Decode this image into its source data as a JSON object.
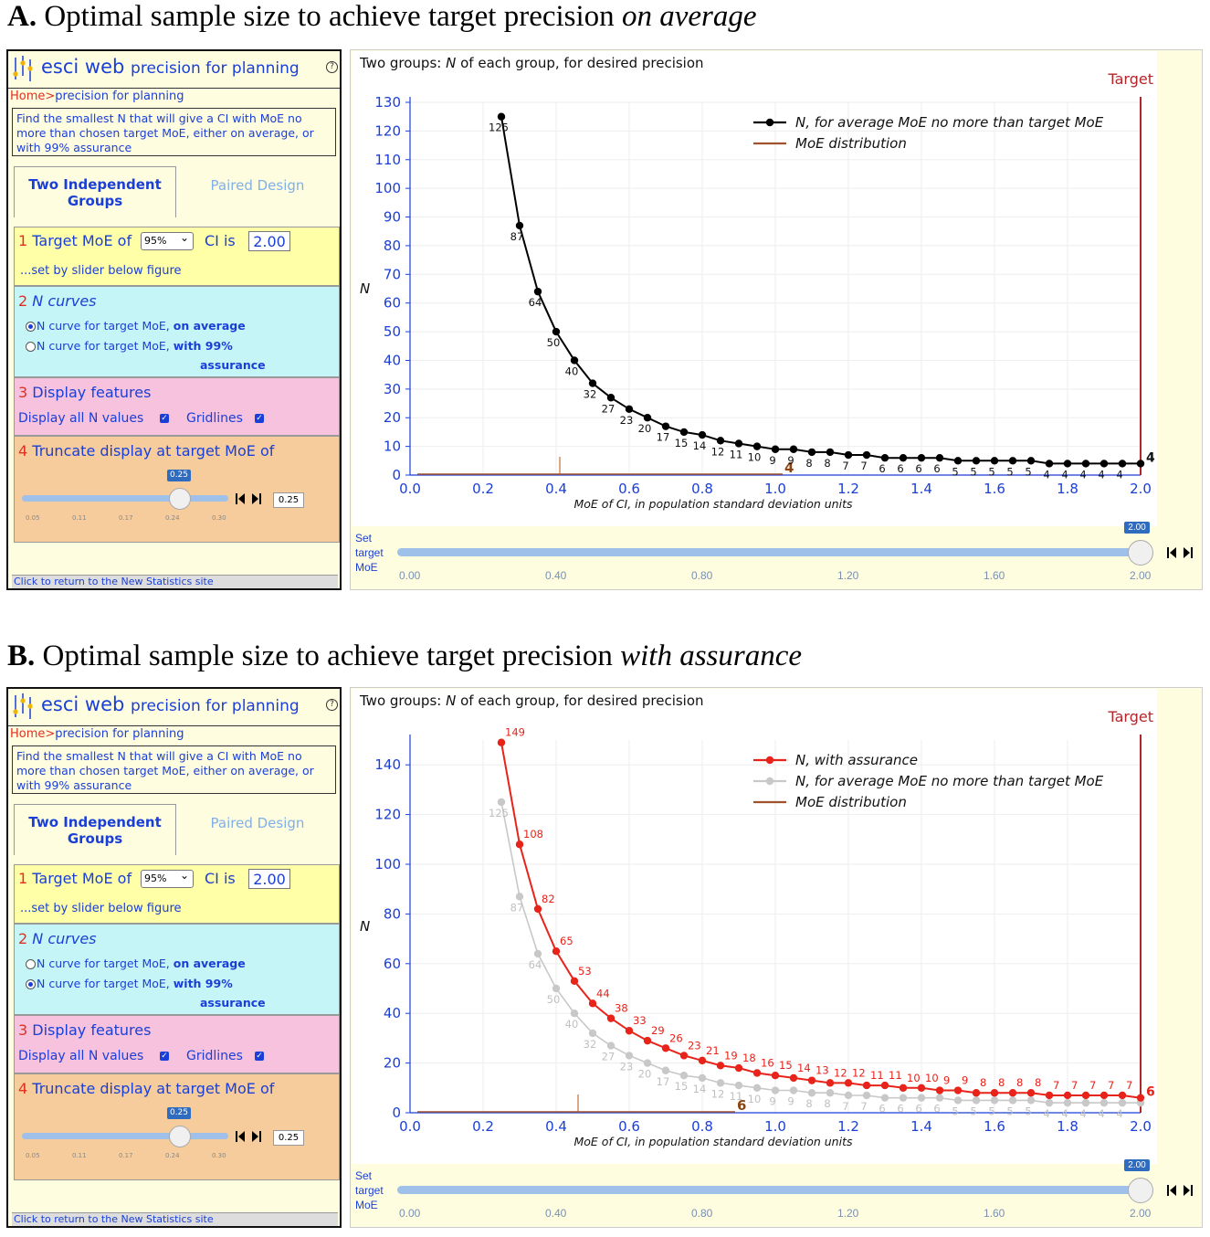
{
  "title_a": {
    "letter": "A.",
    "text": " Optimal sample size to achieve target precision ",
    "emph": "on average"
  },
  "title_b": {
    "letter": "B.",
    "text": " Optimal sample size to achieve target precision ",
    "emph": "with assurance"
  },
  "app": {
    "brand": "esci web",
    "subtitle": "precision for planning",
    "help": "?",
    "crumb_home": "Home>",
    "crumb_page": "precision for planning",
    "description": "Find the smallest N that will give a CI with MoE no more than chosen target MoE, either on average, or with 99% assurance",
    "tab_groups": "Two Independent Groups",
    "tab_paired": "Paired Design",
    "s1_num": "1",
    "s1_label": "Target MoE of",
    "ci_level": "95%",
    "ci_is": "CI is",
    "target_value": "2.00",
    "s1_note": "...set by slider below figure",
    "s2_num": "2",
    "s2_label": "N curves",
    "radio_avg_a": "N curve for target MoE, ",
    "radio_avg_b": "on average",
    "radio_ass_a": "N curve for target MoE, ",
    "radio_ass_b": "with 99%",
    "radio_ass_c": "assurance",
    "s3_num": "3",
    "s3_label": "Display features",
    "display_all": "Display all N values",
    "gridlines": "Gridlines",
    "s4_num": "4",
    "s4_label": "Truncate display at target MoE of",
    "trunc_bubble": "0.25",
    "trunc_value": "0.25",
    "trunc_ticks": [
      "0.05",
      "0.11",
      "0.17",
      "0.24",
      "0.30"
    ],
    "footer": "Click to return to the New Statistics site",
    "slider_set": [
      "Set",
      "target",
      "MoE"
    ],
    "slider_bubble": "2.00",
    "slider_ticks": [
      "0.00",
      "0.40",
      "0.80",
      "1.20",
      "1.60",
      "2.00"
    ],
    "chart_header_a": "Two groups:  ",
    "chart_header_n": "N",
    "chart_header_b": " of each group, for desired precision",
    "step_icon": "step-icon"
  },
  "chart_data": [
    {
      "type": "line",
      "title": "Two groups:  N of each group, for desired precision",
      "xlabel": "MoE of CI, in population standard deviation units",
      "ylabel": "N",
      "xlim": [
        0,
        2.0
      ],
      "ylim": [
        0,
        130
      ],
      "xticks": [
        "0.0",
        "0.2",
        "0.4",
        "0.6",
        "0.8",
        "1.0",
        "1.2",
        "1.4",
        "1.6",
        "1.8",
        "2.0"
      ],
      "yticks": [
        0,
        10,
        20,
        30,
        40,
        50,
        60,
        70,
        80,
        90,
        100,
        110,
        120,
        130
      ],
      "target_label": "Target",
      "target_x": 2.0,
      "end_label": "4",
      "dist_label": "4",
      "dist_x": 1.02,
      "dist_tick_x": 0.41,
      "legend": [
        "N,  for average MoE no more than target MoE",
        "MoE distribution"
      ],
      "series": [
        {
          "name": "N,  for average MoE no more than target MoE",
          "color": "#000000",
          "x": [
            0.25,
            0.3,
            0.35,
            0.4,
            0.45,
            0.5,
            0.55,
            0.6,
            0.65,
            0.7,
            0.75,
            0.8,
            0.85,
            0.9,
            0.95,
            1.0,
            1.05,
            1.1,
            1.15,
            1.2,
            1.25,
            1.3,
            1.35,
            1.4,
            1.45,
            1.5,
            1.55,
            1.6,
            1.65,
            1.7,
            1.75,
            1.8,
            1.85,
            1.9,
            1.95,
            2.0
          ],
          "y": [
            125,
            87,
            64,
            50,
            40,
            32,
            27,
            23,
            20,
            17,
            15,
            14,
            12,
            11,
            10,
            9,
            9,
            8,
            8,
            7,
            7,
            6,
            6,
            6,
            6,
            5,
            5,
            5,
            5,
            5,
            4,
            4,
            4,
            4,
            4,
            4
          ],
          "labels_all": true
        }
      ]
    },
    {
      "type": "line",
      "title": "Two groups:  N of each group, for desired precision",
      "xlabel": "MoE of CI, in population standard deviation units",
      "ylabel": "N",
      "xlim": [
        0,
        2.0
      ],
      "ylim": [
        0,
        150
      ],
      "xticks": [
        "0.0",
        "0.2",
        "0.4",
        "0.6",
        "0.8",
        "1.0",
        "1.2",
        "1.4",
        "1.6",
        "1.8",
        "2.0"
      ],
      "yticks": [
        0,
        20,
        40,
        60,
        80,
        100,
        120,
        140
      ],
      "target_label": "Target",
      "target_x": 2.0,
      "end_label": "6",
      "dist_label": "6",
      "dist_x": 0.89,
      "dist_tick_x": 0.46,
      "legend": [
        "N,  with assurance",
        "N,  for average MoE no more than target MoE",
        "MoE distribution"
      ],
      "series": [
        {
          "name": "N,  with assurance",
          "color": "#e8231a",
          "x": [
            0.25,
            0.3,
            0.35,
            0.4,
            0.45,
            0.5,
            0.55,
            0.6,
            0.65,
            0.7,
            0.75,
            0.8,
            0.85,
            0.9,
            0.95,
            1.0,
            1.05,
            1.1,
            1.15,
            1.2,
            1.25,
            1.3,
            1.35,
            1.4,
            1.45,
            1.5,
            1.55,
            1.6,
            1.65,
            1.7,
            1.75,
            1.8,
            1.85,
            1.9,
            1.95,
            2.0
          ],
          "y": [
            149,
            108,
            82,
            65,
            53,
            44,
            38,
            33,
            29,
            26,
            23,
            21,
            19,
            18,
            16,
            15,
            14,
            13,
            12,
            12,
            11,
            11,
            10,
            10,
            9,
            9,
            8,
            8,
            8,
            8,
            7,
            7,
            7,
            7,
            7,
            6
          ],
          "labels_all": true
        },
        {
          "name": "N,  for average MoE no more than target MoE",
          "color": "#c8c8c8",
          "x": [
            0.25,
            0.3,
            0.35,
            0.4,
            0.45,
            0.5,
            0.55,
            0.6,
            0.65,
            0.7,
            0.75,
            0.8,
            0.85,
            0.9,
            0.95,
            1.0,
            1.05,
            1.1,
            1.15,
            1.2,
            1.25,
            1.3,
            1.35,
            1.4,
            1.45,
            1.5,
            1.55,
            1.6,
            1.65,
            1.7,
            1.75,
            1.8,
            1.85,
            1.9,
            1.95,
            2.0
          ],
          "y": [
            125,
            87,
            64,
            50,
            40,
            32,
            27,
            23,
            20,
            17,
            15,
            14,
            12,
            11,
            10,
            9,
            9,
            8,
            8,
            7,
            7,
            6,
            6,
            6,
            6,
            5,
            5,
            5,
            5,
            5,
            4,
            4,
            4,
            4,
            4,
            4
          ],
          "labels_all": true
        }
      ]
    }
  ]
}
